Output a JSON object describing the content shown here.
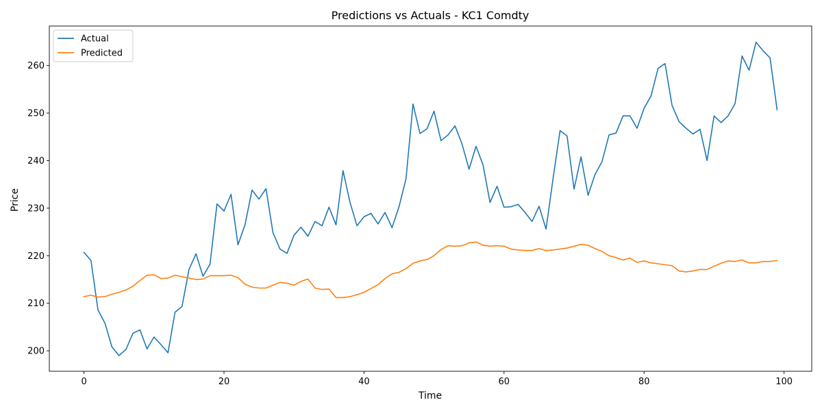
{
  "chart_data": {
    "type": "line",
    "title": "Predictions vs Actuals - KC1 Comdty",
    "xlabel": "Time",
    "ylabel": "Price",
    "xlim": [
      -4.95,
      103.95
    ],
    "ylim": [
      195.7,
      268.3
    ],
    "xticks": [
      0,
      20,
      40,
      60,
      80,
      100
    ],
    "yticks": [
      200,
      210,
      220,
      230,
      240,
      250,
      260
    ],
    "xtick_labels": [
      "0",
      "20",
      "40",
      "60",
      "80",
      "100"
    ],
    "ytick_labels": [
      "200",
      "210",
      "220",
      "230",
      "240",
      "250",
      "260"
    ],
    "grid": false,
    "legend_position": "top-left",
    "series": [
      {
        "name": "Actual",
        "color": "#1f77b4",
        "values": [
          220.7,
          219.0,
          208.6,
          205.8,
          200.8,
          199.0,
          200.3,
          203.7,
          204.4,
          200.4,
          202.9,
          201.3,
          199.6,
          208.1,
          209.3,
          217.1,
          220.4,
          215.7,
          218.2,
          230.9,
          229.4,
          232.9,
          222.3,
          226.5,
          233.8,
          231.9,
          234.1,
          224.8,
          221.4,
          220.5,
          224.3,
          226.0,
          224.1,
          227.2,
          226.3,
          230.2,
          226.5,
          237.9,
          231.2,
          226.3,
          228.2,
          228.9,
          226.7,
          229.1,
          225.9,
          230.3,
          236.2,
          251.9,
          245.7,
          246.7,
          250.4,
          244.2,
          245.4,
          247.3,
          243.5,
          238.2,
          243.0,
          239.1,
          231.2,
          234.6,
          230.2,
          230.3,
          230.8,
          229.1,
          227.2,
          230.4,
          225.6,
          236.2,
          246.3,
          245.2,
          234.0,
          240.8,
          232.7,
          237.1,
          239.8,
          245.4,
          245.8,
          249.4,
          249.4,
          246.8,
          251.0,
          253.6,
          259.4,
          260.4,
          251.6,
          248.2,
          246.8,
          245.6,
          246.6,
          240.0,
          249.4,
          248.0,
          249.4,
          252.0,
          262.0,
          259.0,
          264.9,
          263.1,
          261.6,
          250.7
        ]
      },
      {
        "name": "Predicted",
        "color": "#ff7f0e",
        "values": [
          211.4,
          211.7,
          211.3,
          211.4,
          211.9,
          212.3,
          212.8,
          213.6,
          214.8,
          215.9,
          216.0,
          215.2,
          215.3,
          215.9,
          215.6,
          215.3,
          215.0,
          215.1,
          215.8,
          215.8,
          215.8,
          215.9,
          215.4,
          214.0,
          213.4,
          213.2,
          213.2,
          213.8,
          214.4,
          214.2,
          213.8,
          214.6,
          215.1,
          213.2,
          212.9,
          213.0,
          211.2,
          211.2,
          211.4,
          211.8,
          212.3,
          213.1,
          213.9,
          215.2,
          216.2,
          216.5,
          217.3,
          218.4,
          218.9,
          219.2,
          220.0,
          221.3,
          222.1,
          222.0,
          222.1,
          222.7,
          222.9,
          222.2,
          222.0,
          222.1,
          222.0,
          221.4,
          221.2,
          221.1,
          221.1,
          221.5,
          221.1,
          221.2,
          221.4,
          221.6,
          222.0,
          222.4,
          222.2,
          221.5,
          220.9,
          220.0,
          219.6,
          219.1,
          219.5,
          218.6,
          218.9,
          218.5,
          218.3,
          218.1,
          217.9,
          216.8,
          216.6,
          216.8,
          217.1,
          217.1,
          217.8,
          218.4,
          218.9,
          218.8,
          219.1,
          218.5,
          218.5,
          218.8,
          218.8,
          219.0
        ]
      }
    ]
  }
}
